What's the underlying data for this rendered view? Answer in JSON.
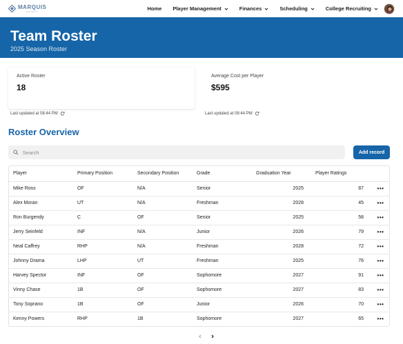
{
  "brand": {
    "name": "MARQUIS",
    "sub": "SPORTS",
    "color": "#1665a8"
  },
  "nav": {
    "items": [
      {
        "label": "Home",
        "dropdown": false
      },
      {
        "label": "Player Management",
        "dropdown": true
      },
      {
        "label": "Finances",
        "dropdown": true
      },
      {
        "label": "Scheduling",
        "dropdown": true
      },
      {
        "label": "College Recruiting",
        "dropdown": true
      }
    ]
  },
  "hero": {
    "title": "Team Roster",
    "subtitle": "2025 Season Roster"
  },
  "stats": [
    {
      "label": "Active Roster",
      "value": "18",
      "updated": "Last updated at 08:44 PM"
    },
    {
      "label": "Average Cost per Player",
      "value": "$595",
      "updated": "Last updated at 08:44 PM"
    }
  ],
  "section": {
    "title": "Roster Overview"
  },
  "search": {
    "placeholder": "Search"
  },
  "add_button": {
    "label": "Add record"
  },
  "table": {
    "columns": [
      "Player",
      "Primary Position",
      "Secondary Position",
      "Grade",
      "Graduation Year",
      "Player Ratings"
    ],
    "rows": [
      [
        "Mike Ross",
        "OF",
        "N/A",
        "Senior",
        "2025",
        "87"
      ],
      [
        "Alex Moran",
        "UT",
        "N/A",
        "Freshman",
        "2028",
        "45"
      ],
      [
        "Ron Burgendy",
        "C",
        "OF",
        "Senior",
        "2025",
        "58"
      ],
      [
        "Jerry Seinfeld",
        "INF",
        "N/A",
        "Junior",
        "2026",
        "79"
      ],
      [
        "Neal Caffrey",
        "RHP",
        "N/A",
        "Freshman",
        "2028",
        "72"
      ],
      [
        "Johnny Drama",
        "LHP",
        "UT",
        "Freshman",
        "2025",
        "76"
      ],
      [
        "Harvey Spector",
        "INF",
        "OF",
        "Sophomore",
        "2027",
        "91"
      ],
      [
        "Vinny Chase",
        "1B",
        "OF",
        "Sophomore",
        "2027",
        "83"
      ],
      [
        "Tony Soprano",
        "1B",
        "OF",
        "Junior",
        "2026",
        "70"
      ],
      [
        "Kenny Powers",
        "RHP",
        "1B",
        "Sophomore",
        "2027",
        "65"
      ]
    ],
    "row_action_icon": "more-horizontal-icon",
    "row_action_glyph": "•••"
  },
  "pager": {
    "prev_icon": "chevron-left-icon",
    "next_icon": "chevron-right-icon"
  }
}
